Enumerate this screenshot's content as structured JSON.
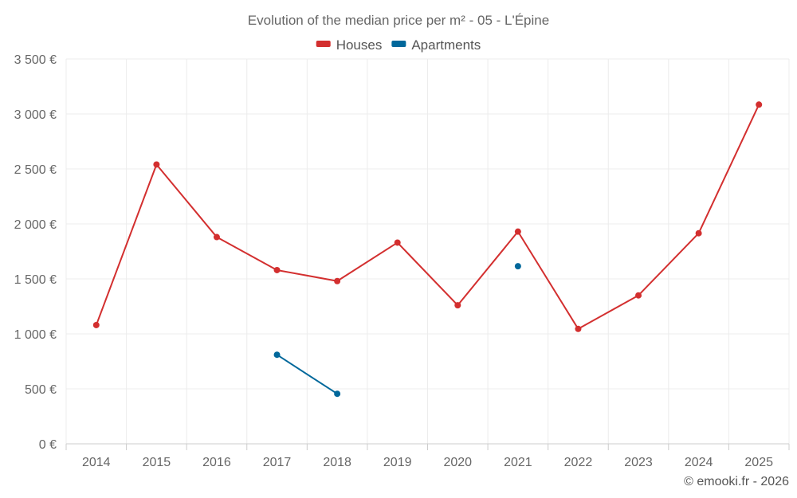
{
  "chart_data": {
    "type": "line",
    "title": "Evolution of the median price per m² - 05 - L'Épine",
    "categories": [
      "2014",
      "2015",
      "2016",
      "2017",
      "2018",
      "2019",
      "2020",
      "2021",
      "2022",
      "2023",
      "2024",
      "2025"
    ],
    "series": [
      {
        "name": "Houses",
        "color": "#d32f2f",
        "values": [
          1080,
          2540,
          1880,
          1580,
          1480,
          1830,
          1260,
          1930,
          1045,
          1350,
          1915,
          3085
        ]
      },
      {
        "name": "Apartments",
        "color": "#01689b",
        "values": [
          null,
          null,
          null,
          810,
          455,
          null,
          null,
          1615,
          null,
          null,
          null,
          null
        ]
      }
    ],
    "ylim": [
      0,
      3500
    ],
    "yticks": [
      0,
      500,
      1000,
      1500,
      2000,
      2500,
      3000,
      3500
    ],
    "ytick_labels": [
      "0 €",
      "500 €",
      "1 000 €",
      "1 500 €",
      "2 000 €",
      "2 500 €",
      "3 000 €",
      "3 500 €"
    ],
    "legend_position": "top-center",
    "grid": true,
    "credit": "© emooki.fr - 2026"
  }
}
